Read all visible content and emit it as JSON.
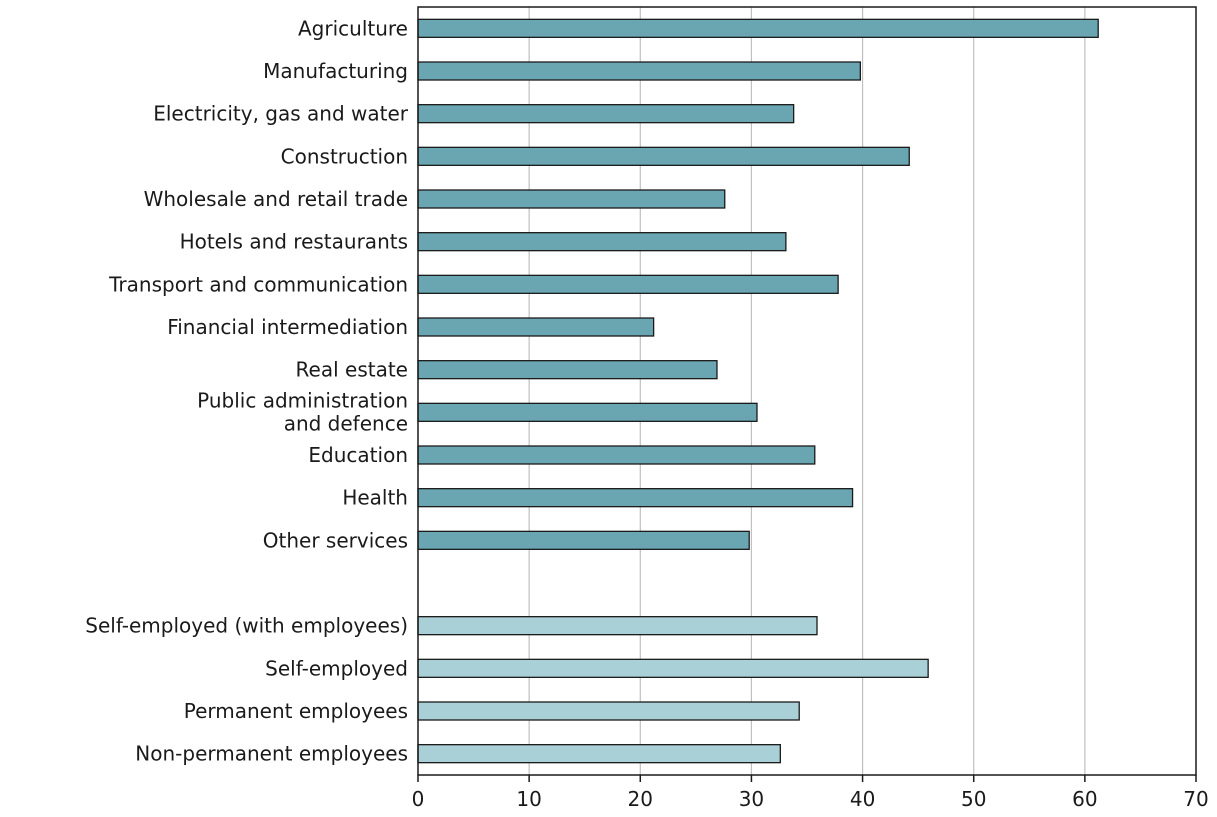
{
  "chart_data": {
    "type": "bar",
    "orientation": "horizontal",
    "title": "",
    "xlabel": "",
    "ylabel": "",
    "xlim": [
      0,
      70
    ],
    "xticks": [
      0,
      10,
      20,
      30,
      40,
      50,
      60,
      70
    ],
    "grid": "vertical",
    "legend": "none",
    "colors": {
      "sector": "#6aa6b2",
      "status": "#a9d0d6",
      "outline": "#1a1a1a",
      "grid": "#c0c0c0"
    },
    "groups": [
      {
        "color": "#6aa6b2",
        "categories": [
          "Agriculture",
          "Manufacturing",
          "Electricity, gas and water",
          "Construction",
          "Wholesale and retail trade",
          "Hotels and restaurants",
          "Transport and communication",
          "Financial intermediation",
          "Real estate",
          "Public administration and defence",
          "Education",
          "Health",
          "Other services"
        ],
        "values": [
          61.2,
          39.8,
          33.8,
          44.2,
          27.6,
          33.1,
          37.8,
          21.2,
          26.9,
          30.5,
          35.7,
          39.1,
          29.8
        ]
      },
      {
        "color": "#a9d0d6",
        "categories": [
          "Self-employed (with employees)",
          "Self-employed",
          "Permanent employees",
          "Non-permanent employees"
        ],
        "values": [
          35.9,
          45.9,
          34.3,
          32.6
        ]
      }
    ]
  }
}
